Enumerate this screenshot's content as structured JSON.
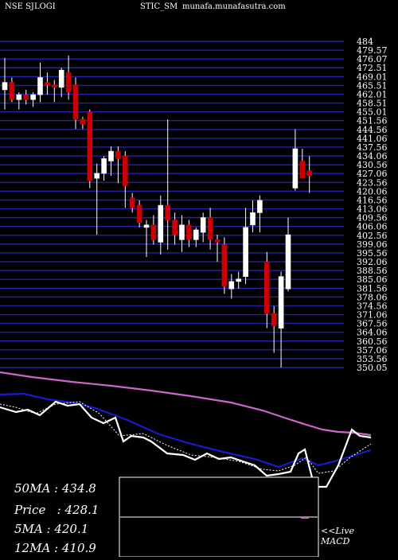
{
  "header": {
    "exchange_symbol": "NSE SJLOGI",
    "symbol_suffix": "STIC_SM",
    "site": "munafa.munafasutra.com"
  },
  "stats": [
    {
      "label": "50MA",
      "value": "434.8"
    },
    {
      "label": "Price",
      "value": "428.1"
    },
    {
      "label": "5MA",
      "value": "420.1"
    },
    {
      "label": "12MA",
      "value": "410.9"
    }
  ],
  "live_label_line1": "<<Live",
  "live_label_line2": "MACD",
  "colors": {
    "background": "#000000",
    "gridline": "#2222aa",
    "bull_candle": "#ffffff",
    "bear_candle": "#cc0000",
    "ma50_line": "#cc66cc",
    "ma20_line": "#1a1acc",
    "price_line": "#ffffff",
    "ma5_dotted": "#ffffff"
  },
  "chart_data": {
    "type": "candlestick",
    "ylim": [
      350,
      484
    ],
    "price_tick_labels": [
      "484",
      "479.57",
      "476.07",
      "472.51",
      "469.01",
      "465.51",
      "462.01",
      "458.51",
      "455.01",
      "451.56",
      "444.56",
      "441.06",
      "437.56",
      "434.06",
      "430.56",
      "427.06",
      "423.56",
      "420.06",
      "416.56",
      "413.06",
      "409.56",
      "406.06",
      "402.56",
      "399.06",
      "395.56",
      "392.06",
      "388.56",
      "385.06",
      "381.56",
      "378.06",
      "374.56",
      "371.06",
      "367.56",
      "364.06",
      "360.56",
      "357.06",
      "353.56",
      "350.05"
    ],
    "candles": [
      {
        "o": 463.0,
        "h": 476.0,
        "l": 455.0,
        "c": 466.0
      },
      {
        "o": 466.0,
        "h": 468.0,
        "l": 458.0,
        "c": 459.0
      },
      {
        "o": 459.0,
        "h": 462.0,
        "l": 455.0,
        "c": 461.0
      },
      {
        "o": 461.0,
        "h": 463.0,
        "l": 457.0,
        "c": 459.0
      },
      {
        "o": 459.0,
        "h": 462.0,
        "l": 456.0,
        "c": 461.0
      },
      {
        "o": 461.0,
        "h": 474.0,
        "l": 458.0,
        "c": 468.0
      },
      {
        "o": 466.0,
        "h": 470.0,
        "l": 461.0,
        "c": 465.0
      },
      {
        "o": 465.0,
        "h": 467.0,
        "l": 458.0,
        "c": 464.0
      },
      {
        "o": 464.0,
        "h": 472.0,
        "l": 460.0,
        "c": 471.0
      },
      {
        "o": 470.0,
        "h": 477.0,
        "l": 459.0,
        "c": 462.0
      },
      {
        "o": 465.0,
        "h": 468.0,
        "l": 447.0,
        "c": 451.0
      },
      {
        "o": 451.0,
        "h": 452.0,
        "l": 447.0,
        "c": 449.0
      },
      {
        "o": 454.0,
        "h": 455.0,
        "l": 423.0,
        "c": 426.0
      },
      {
        "o": 427.0,
        "h": 433.0,
        "l": 404.0,
        "c": 429.0
      },
      {
        "o": 429.0,
        "h": 436.0,
        "l": 426.0,
        "c": 435.0
      },
      {
        "o": 434.0,
        "h": 440.0,
        "l": 428.0,
        "c": 438.0
      },
      {
        "o": 438.0,
        "h": 440.0,
        "l": 425.0,
        "c": 435.0
      },
      {
        "o": 436.0,
        "h": 438.0,
        "l": 415.0,
        "c": 424.0
      },
      {
        "o": 419.0,
        "h": 421.0,
        "l": 413.0,
        "c": 415.0
      },
      {
        "o": 416.0,
        "h": 418.0,
        "l": 407.0,
        "c": 409.0
      },
      {
        "o": 407.0,
        "h": 410.0,
        "l": 395.0,
        "c": 408.0
      },
      {
        "o": 408.0,
        "h": 412.0,
        "l": 400.0,
        "c": 402.0
      },
      {
        "o": 401.0,
        "h": 420.0,
        "l": 396.0,
        "c": 416.0
      },
      {
        "o": 416.0,
        "h": 451.0,
        "l": 398.0,
        "c": 410.0
      },
      {
        "o": 410.0,
        "h": 413.0,
        "l": 400.0,
        "c": 404.0
      },
      {
        "o": 402.0,
        "h": 412.0,
        "l": 397.0,
        "c": 408.0
      },
      {
        "o": 408.0,
        "h": 410.0,
        "l": 399.0,
        "c": 402.0
      },
      {
        "o": 402.0,
        "h": 407.0,
        "l": 399.0,
        "c": 406.0
      },
      {
        "o": 405.0,
        "h": 413.0,
        "l": 401.0,
        "c": 411.0
      },
      {
        "o": 411.0,
        "h": 415.0,
        "l": 398.0,
        "c": 402.0
      },
      {
        "o": 402.0,
        "h": 404.0,
        "l": 393.0,
        "c": 401.0
      },
      {
        "o": 400.0,
        "h": 403.0,
        "l": 380.0,
        "c": 383.0
      },
      {
        "o": 382.0,
        "h": 388.0,
        "l": 378.0,
        "c": 385.0
      },
      {
        "o": 385.0,
        "h": 389.0,
        "l": 382.0,
        "c": 386.0
      },
      {
        "o": 387.0,
        "h": 415.0,
        "l": 384.0,
        "c": 407.0
      },
      {
        "o": 408.0,
        "h": 418.0,
        "l": 405.0,
        "c": 413.0
      },
      {
        "o": 413.0,
        "h": 420.0,
        "l": 405.0,
        "c": 418.0
      },
      {
        "o": 393.0,
        "h": 397.0,
        "l": 366.0,
        "c": 372.0
      },
      {
        "o": 372.0,
        "h": 375.0,
        "l": 356.0,
        "c": 367.0
      },
      {
        "o": 366.0,
        "h": 389.0,
        "l": 350.0,
        "c": 387.0
      },
      {
        "o": 382.0,
        "h": 411.0,
        "l": 381.0,
        "c": 404.0
      },
      {
        "o": 423.0,
        "h": 447.0,
        "l": 422.0,
        "c": 439.0
      },
      {
        "o": 434.0,
        "h": 439.0,
        "l": 427.0,
        "c": 427.0
      },
      {
        "o": 430.0,
        "h": 436.0,
        "l": 421.0,
        "c": 428.0
      }
    ]
  }
}
